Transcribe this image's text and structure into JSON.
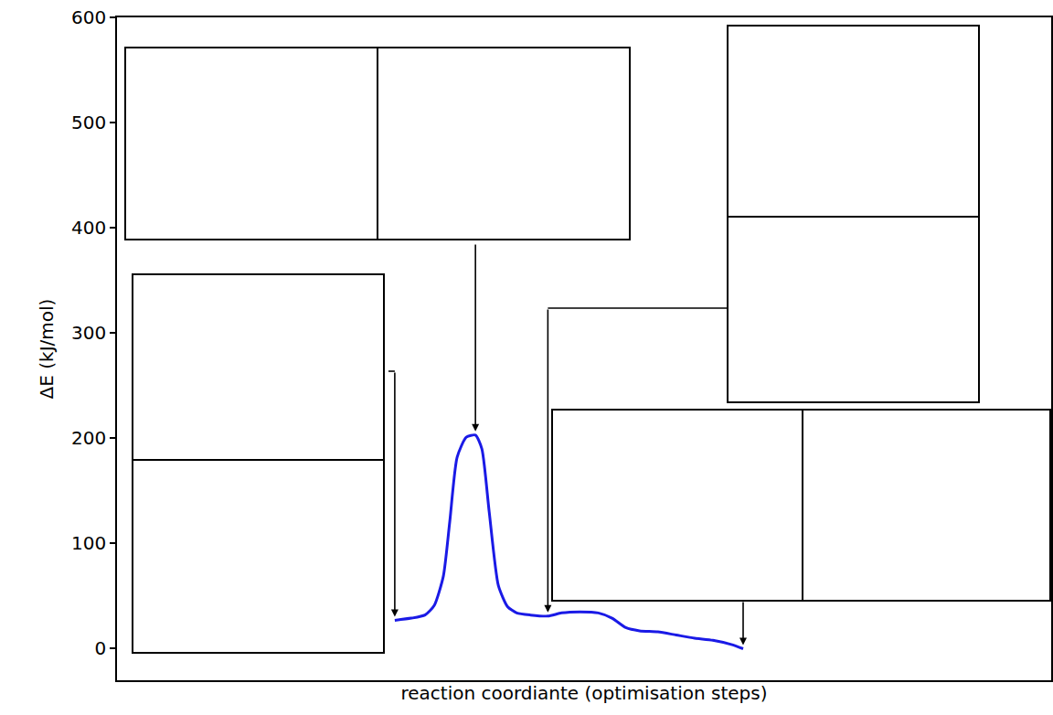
{
  "chart_data": {
    "type": "line",
    "x_label": "reaction coordiante (optimisation steps)",
    "y_label": "ΔE (kJ/mol)",
    "x": [
      0,
      1.8,
      3.3,
      4.3,
      5.3,
      6.0,
      6.8,
      7.8,
      8.8,
      9.5,
      10.3,
      11.3,
      12.3,
      13.3,
      14.8,
      16.7,
      18.2,
      20.2,
      22.2,
      23.7,
      25.2,
      26.7,
      28.7,
      30.7,
      32.7,
      34.7,
      36.7,
      38.0
    ],
    "values": [
      27,
      29,
      32,
      41,
      69,
      121,
      182,
      201,
      203,
      190,
      130,
      60,
      40,
      34,
      32,
      31,
      34,
      35,
      34,
      29,
      20,
      17,
      16,
      13,
      10,
      8,
      4,
      0
    ],
    "color": "#1a1ae6",
    "xlim": [
      -30.3,
      71.6
    ],
    "ylim": [
      -30,
      600
    ],
    "yticks": [
      0,
      100,
      200,
      300,
      400,
      500,
      600
    ],
    "tick_labels": "y",
    "grid": false
  }
}
